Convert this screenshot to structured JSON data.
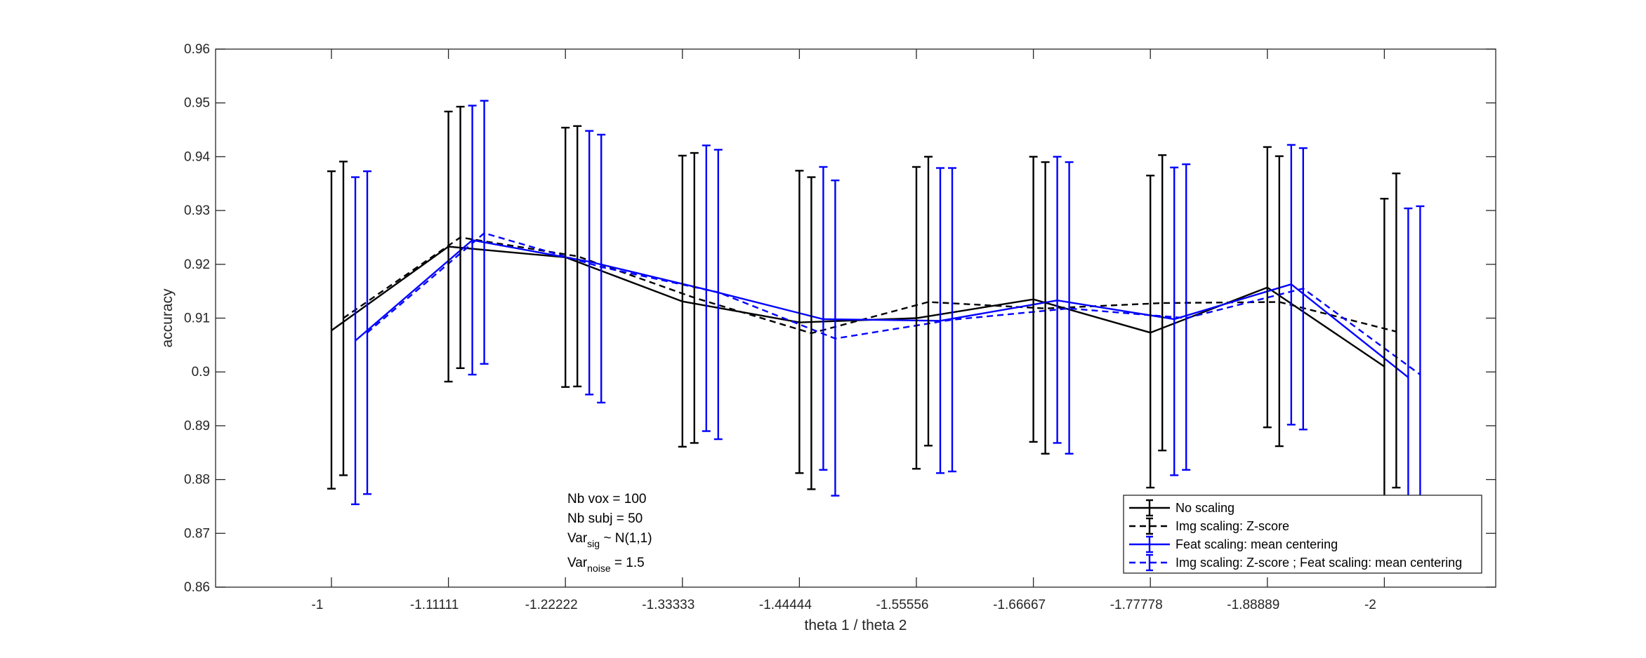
{
  "chart_data": {
    "type": "line",
    "xlabel": "theta 1 / theta 2",
    "ylabel": "accuracy",
    "ylim": [
      0.86,
      0.96
    ],
    "yticks": [
      "0.86",
      "0.87",
      "0.88",
      "0.89",
      "0.9",
      "0.91",
      "0.92",
      "0.93",
      "0.94",
      "0.95",
      "0.96"
    ],
    "categories": [
      "-1",
      "-1.11111",
      "-1.22222",
      "-1.33333",
      "-1.44444",
      "-1.55556",
      "-1.66667",
      "-1.77778",
      "-1.88889",
      "-2"
    ],
    "error_bars": true,
    "series": [
      {
        "name": "No scaling",
        "color": "#000000",
        "dash": "solid",
        "values": [
          0.9077,
          0.9233,
          0.9213,
          0.9131,
          0.9092,
          0.91,
          0.9135,
          0.9073,
          0.9157,
          0.901
        ],
        "lower": [
          0.8783,
          0.8982,
          0.8972,
          0.8861,
          0.8812,
          0.882,
          0.887,
          0.8785,
          0.8897,
          0.874
        ],
        "upper": [
          0.9373,
          0.9484,
          0.9454,
          0.9402,
          0.9374,
          0.9381,
          0.94,
          0.9365,
          0.9418,
          0.9322
        ]
      },
      {
        "name": "Img scaling: Z-score",
        "color": "#000000",
        "dash": "dashed",
        "values": [
          0.91,
          0.925,
          0.9215,
          0.9138,
          0.9072,
          0.913,
          0.9118,
          0.9128,
          0.913,
          0.9075
        ],
        "lower": [
          0.8808,
          0.9007,
          0.8973,
          0.8868,
          0.8782,
          0.8863,
          0.8848,
          0.8854,
          0.8862,
          0.8785
        ],
        "upper": [
          0.9391,
          0.9493,
          0.9457,
          0.9407,
          0.9362,
          0.94,
          0.939,
          0.9403,
          0.9401,
          0.9369
        ]
      },
      {
        "name": "Feat scaling: mean centering",
        "color": "#0000ff",
        "dash": "solid",
        "values": [
          0.9058,
          0.9245,
          0.9205,
          0.9153,
          0.9098,
          0.9095,
          0.9133,
          0.9098,
          0.9163,
          0.899
        ],
        "lower": [
          0.8754,
          0.8995,
          0.8958,
          0.889,
          0.8818,
          0.8812,
          0.8868,
          0.8808,
          0.8902,
          0.8672
        ],
        "upper": [
          0.9362,
          0.9495,
          0.9448,
          0.9421,
          0.9381,
          0.9379,
          0.94,
          0.938,
          0.9422,
          0.9304
        ]
      },
      {
        "name": "Img scaling: Z-score ; Feat scaling: mean centering",
        "color": "#0000ff",
        "dash": "dashed",
        "values": [
          0.9073,
          0.9258,
          0.9195,
          0.9148,
          0.9062,
          0.9097,
          0.9118,
          0.91,
          0.9155,
          0.8995
        ],
        "lower": [
          0.8773,
          0.9015,
          0.8943,
          0.8875,
          0.877,
          0.8815,
          0.8848,
          0.8818,
          0.8893,
          0.8682
        ],
        "upper": [
          0.9373,
          0.9504,
          0.9441,
          0.9413,
          0.9356,
          0.9379,
          0.939,
          0.9386,
          0.9416,
          0.9308
        ]
      }
    ],
    "annotation": [
      {
        "text": "Nb vox = 100"
      },
      {
        "text": "Nb subj = 50"
      },
      {
        "text": "Var",
        "sub": "sig",
        "rest": " ~ N(1,1)"
      },
      {
        "text": "Var",
        "sub": "noise",
        "rest": " = 1.5"
      }
    ],
    "legend_location": "bottom-right",
    "grid": false
  }
}
